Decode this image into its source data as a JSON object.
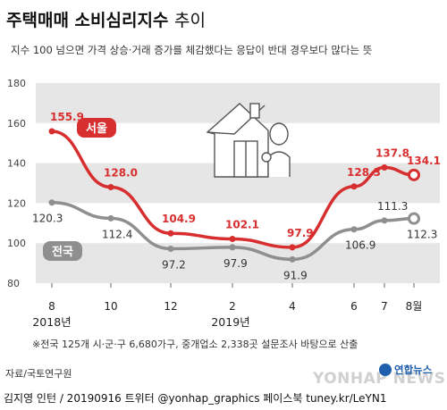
{
  "header": {
    "title_bold": "주택매매 소비심리지수",
    "title_light": "추이",
    "subtitle": "지수 100 넘으면 가격 상승·거래 증가를 체감했다는 응답이 반대 경우보다 많다는 뜻"
  },
  "chart_data": {
    "type": "line",
    "x": [
      "8",
      "10",
      "12",
      "2",
      "4",
      "6",
      "7",
      "8월"
    ],
    "year_labels": [
      "2018년",
      "2019년"
    ],
    "ylim": [
      80,
      180
    ],
    "yticks": [
      "180",
      "160",
      "140",
      "120",
      "100",
      "80"
    ],
    "series": [
      {
        "name": "서울",
        "color": "#d72f2f",
        "values": [
          155.9,
          128.0,
          104.9,
          102.1,
          97.9,
          128.3,
          137.8,
          134.1
        ],
        "labels": [
          "155.9",
          "128.0",
          "104.9",
          "102.1",
          "97.9",
          "128.3",
          "137.8",
          "134.1"
        ]
      },
      {
        "name": "전국",
        "color": "#8f8f8f",
        "values": [
          120.3,
          112.4,
          97.2,
          97.9,
          91.9,
          106.9,
          111.3,
          112.3
        ],
        "labels": [
          "120.3",
          "112.4",
          "97.2",
          "97.9",
          "91.9",
          "106.9",
          "111.3",
          "112.3"
        ]
      }
    ],
    "grid": "alternating bands"
  },
  "footer": {
    "note": "※전국 125개 시·군·구 6,680가구, 중개업소 2,338곳 설문조사 바탕으로 산출",
    "source": "자료/국토연구원",
    "credit": "김지영 인턴 / 20190916 트위터 @yonhap_graphics 페이스북 tuney.kr/LeYN1",
    "logo_text": "연합뉴스",
    "watermark": "YONHAP NEWS"
  },
  "colors": {
    "seoul": "#d72f2f",
    "national": "#8f8f8f",
    "band": "#e6e6e6"
  }
}
